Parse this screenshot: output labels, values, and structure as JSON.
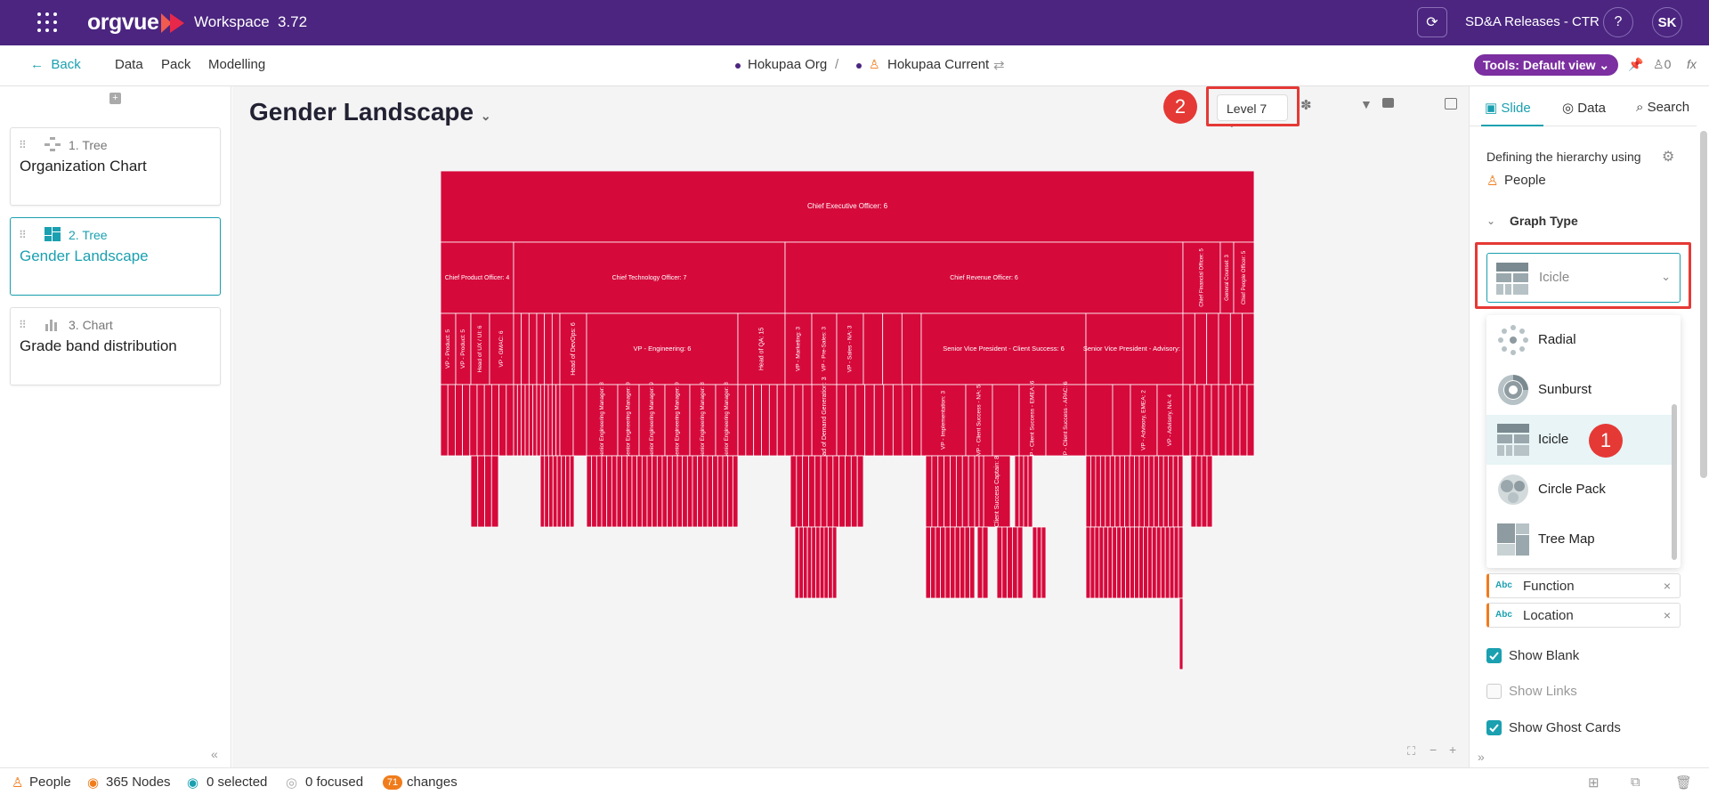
{
  "app": {
    "logo": "orgvue",
    "workspace": "Workspace",
    "version": "3.72",
    "release": "SD&A Releases - CTR",
    "help": "?",
    "user_initials": "SK"
  },
  "nav": {
    "back": "Back",
    "items": [
      "Data",
      "Pack",
      "Modelling"
    ],
    "crumb_org": "Hokupaa Org",
    "crumb_sep": "/",
    "crumb_current": "Hokupaa Current",
    "tools": "Tools: Default view",
    "count": "0",
    "fx": "fx"
  },
  "slides": [
    {
      "type": "1. Tree",
      "title": "Organization Chart"
    },
    {
      "type": "2. Tree",
      "title": "Gender Landscape"
    },
    {
      "type": "3. Chart",
      "title": "Grade band distribution"
    }
  ],
  "page": {
    "title": "Gender Landscape",
    "level": "Level 7"
  },
  "annotations": {
    "badge1": "1",
    "badge2": "2"
  },
  "right": {
    "tabs": [
      "Slide",
      "Data",
      "Search"
    ],
    "defining": "Defining the hierarchy using",
    "hierarchy_source": "People",
    "graph_type_label": "Graph Type",
    "selected_type": "Icicle",
    "options": [
      "Radial",
      "Sunburst",
      "Icicle",
      "Circle Pack",
      "Tree Map"
    ],
    "chips": [
      "Function",
      "Location"
    ],
    "chip_prefix": "Abc",
    "checkboxes": [
      {
        "label": "Show Blank",
        "checked": true
      },
      {
        "label": "Show Links",
        "checked": false
      },
      {
        "label": "Show Ghost Cards",
        "checked": true
      }
    ]
  },
  "status": {
    "people": "People",
    "nodes": "365 Nodes",
    "selected": "0 selected",
    "focused": "0 focused",
    "changes_count": "71",
    "changes": "changes"
  },
  "colors": {
    "brand": "#4b2580",
    "accent": "#1aa0b0",
    "icicle": "#d6093b",
    "badge": "#e53935"
  },
  "icicle": {
    "ceo": "Chief Executive Officer: 6",
    "level2": [
      "Chief Product Officer: 4",
      "Chief Technology Officer: 7",
      "Chief Revenue Officer: 6",
      "Chief Financial Officer: 5",
      "General Counsel: 3",
      "Chief People Officer: 5"
    ],
    "level3_product": [
      "VP - Product: 5",
      "VP - Product: 5",
      "Head of UX / UI: 6",
      "VP - GMAC: 6"
    ],
    "level3_tech": [
      "Head of DevOps: 6",
      "VP - Engineering: 6",
      "Head of QA: 15"
    ],
    "level3_revenue": [
      "VP - Marketing: 3",
      "VP - Pre-Sales: 3",
      "VP - Sales - NA: 3",
      "Senior Vice President - Client Success: 6",
      "Senior Vice President - Advisory: 5"
    ],
    "level4": [
      "Senior Engineering Manager: 8",
      "Senior Engineering Manager: 9",
      "Senior Engineering Manager: 9",
      "Senior Engineering Manager: 9",
      "Senior Engineering Manager: 8",
      "Senior Engineering Manager: 8",
      "Head of Demand Generation: 3",
      "VP - Implementation: 3",
      "VP - Client Success - NA: 5",
      "VP - Client Success - EMEA: 6",
      "VP - Client Success - APAC: 6",
      "VP - Advisory, EMEA: 2",
      "VP - Advisory, NA: 4"
    ],
    "level5": [
      "Client Success Captain: 8"
    ]
  }
}
